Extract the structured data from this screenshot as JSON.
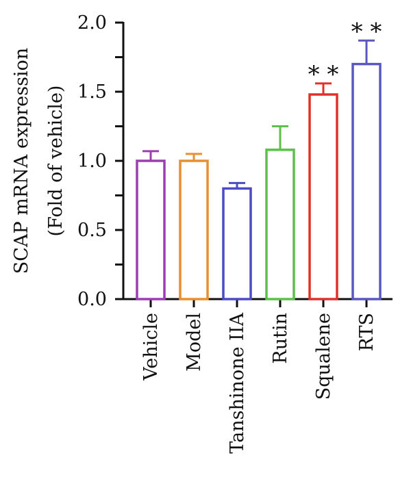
{
  "chart_data": {
    "type": "bar",
    "ylabel_lines": [
      "SCAP mRNA expression",
      "(Fold of vehicle)"
    ],
    "ylim": [
      0,
      2.0
    ],
    "yticks": [
      0.0,
      0.25,
      0.5,
      0.75,
      1.0,
      1.25,
      1.5,
      1.75,
      2.0
    ],
    "ytick_labels": [
      "0.0",
      "",
      "0.5",
      "",
      "1.0",
      "",
      "1.5",
      "",
      "2.0"
    ],
    "categories": [
      "Vehicle",
      "Model",
      "Tanshinone IIA",
      "Rutin",
      "Squalene",
      "RTS"
    ],
    "values": [
      1.0,
      1.0,
      0.8,
      1.08,
      1.48,
      1.7
    ],
    "errors": [
      0.07,
      0.05,
      0.04,
      0.17,
      0.08,
      0.17
    ],
    "colors": [
      "#9b3fb0",
      "#e8902e",
      "#4b4bc4",
      "#5cc04a",
      "#e0302a",
      "#5a58c0"
    ],
    "significance": [
      "",
      "",
      "",
      "",
      "**",
      "**"
    ],
    "grid": false,
    "legend": "none"
  }
}
